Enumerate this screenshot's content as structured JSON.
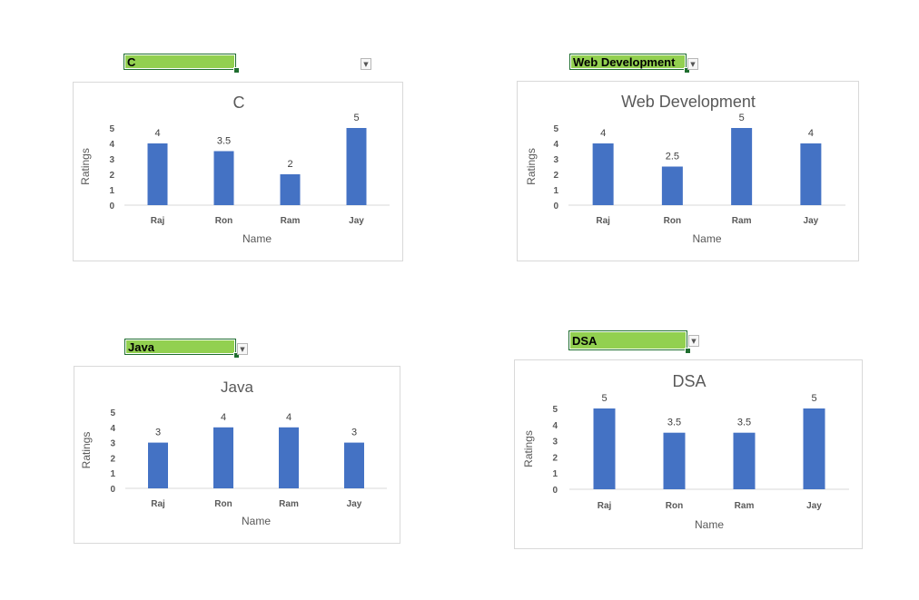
{
  "colors": {
    "bar": "#4472c4",
    "dropdown_fill": "#92d050",
    "dropdown_border": "#1f6e2f",
    "axis_line": "#d9d9d9",
    "text": "#595959"
  },
  "dropdowns": [
    {
      "value": "C"
    },
    {
      "value": "Web Development"
    },
    {
      "value": "Java"
    },
    {
      "value": "DSA"
    }
  ],
  "chart_data": [
    {
      "type": "bar",
      "title": "C",
      "categories": [
        "Raj",
        "Ron",
        "Ram",
        "Jay"
      ],
      "values": [
        4,
        3.5,
        2,
        5
      ],
      "data_labels": [
        "4",
        "3.5",
        "2",
        "5"
      ],
      "xlabel": "Name",
      "ylabel": "Ratings",
      "ylim": [
        0,
        5
      ],
      "yticks": [
        "0",
        "1",
        "2",
        "3",
        "4",
        "5"
      ],
      "grid": false,
      "legend": "none"
    },
    {
      "type": "bar",
      "title": "Web Development",
      "categories": [
        "Raj",
        "Ron",
        "Ram",
        "Jay"
      ],
      "values": [
        4,
        2.5,
        5,
        4
      ],
      "data_labels": [
        "4",
        "2.5",
        "5",
        "4"
      ],
      "xlabel": "Name",
      "ylabel": "Ratings",
      "ylim": [
        0,
        5
      ],
      "yticks": [
        "0",
        "1",
        "2",
        "3",
        "4",
        "5"
      ],
      "grid": false,
      "legend": "none"
    },
    {
      "type": "bar",
      "title": "Java",
      "categories": [
        "Raj",
        "Ron",
        "Ram",
        "Jay"
      ],
      "values": [
        3,
        4,
        4,
        3
      ],
      "data_labels": [
        "3",
        "4",
        "4",
        "3"
      ],
      "xlabel": "Name",
      "ylabel": "Ratings",
      "ylim": [
        0,
        5
      ],
      "yticks": [
        "0",
        "1",
        "2",
        "3",
        "4",
        "5"
      ],
      "grid": false,
      "legend": "none"
    },
    {
      "type": "bar",
      "title": "DSA",
      "categories": [
        "Raj",
        "Ron",
        "Ram",
        "Jay"
      ],
      "values": [
        5,
        3.5,
        3.5,
        5
      ],
      "data_labels": [
        "5",
        "3.5",
        "3.5",
        "5"
      ],
      "xlabel": "Name",
      "ylabel": "Ratings",
      "ylim": [
        0,
        5
      ],
      "yticks": [
        "0",
        "1",
        "2",
        "3",
        "4",
        "5"
      ],
      "grid": false,
      "legend": "none"
    }
  ]
}
